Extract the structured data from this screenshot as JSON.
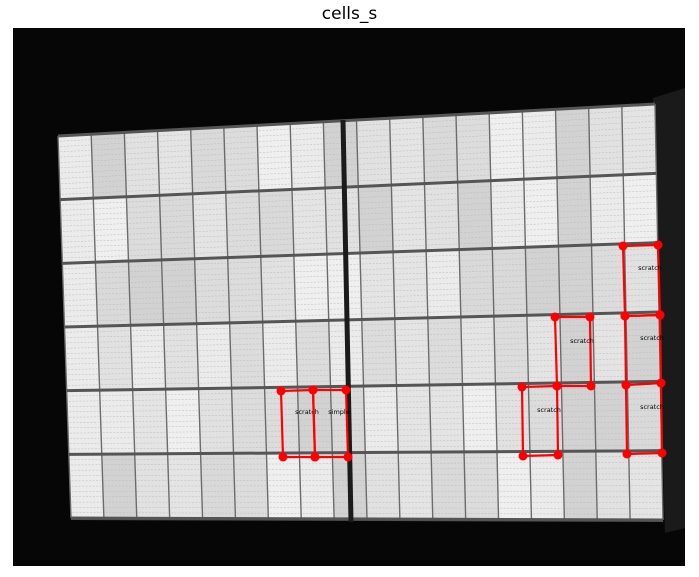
{
  "figure": {
    "title": "cells_s"
  },
  "annotations": {
    "marker_color": "#ff0000",
    "label_color": "#000000",
    "labels": [
      {
        "text": "scratch"
      },
      {
        "text": "simple"
      },
      {
        "text": "scratch"
      },
      {
        "text": "scratch"
      },
      {
        "text": "scratch"
      },
      {
        "text": "scratch"
      },
      {
        "text": "scratch"
      }
    ]
  }
}
